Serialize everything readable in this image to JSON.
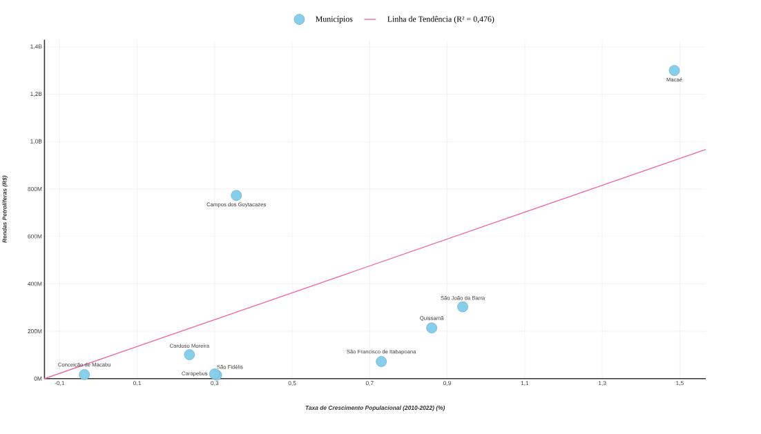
{
  "chart_data": {
    "type": "scatter",
    "xlabel": "Taxa de Crescimento Populacional (2010-2022) (%)",
    "ylabel": "Rendas Petrolíferas (R$)",
    "series": [
      {
        "name": "Municípios",
        "color": "#87ceeb",
        "marker": "circle",
        "x": [
          -0.036,
          0.235,
          0.305,
          0.3,
          0.356,
          0.73,
          0.86,
          0.94,
          1.486
        ],
        "values": [
          17000000,
          101000000,
          15000000,
          20000000,
          773000000,
          72000000,
          214000000,
          303000000,
          1300000000
        ]
      },
      {
        "name": "Linha de Tendência (R² = 0,476)",
        "type": "line",
        "color": "#f06aa8",
        "marker": "none",
        "line_style": "solid",
        "x": [
          -0.139,
          1.567
        ],
        "values": [
          0,
          967000000
        ]
      }
    ],
    "annotations": [
      {
        "text": "Conceição de Macabu",
        "x": -0.036,
        "y": 17000000
      },
      {
        "text": "Cardoso Moreira",
        "x": 0.235,
        "y": 101000000
      },
      {
        "text": "São Fidélis",
        "x": 0.305,
        "y": 15000000
      },
      {
        "text": "Carapebus",
        "x": 0.3,
        "y": 20000000
      },
      {
        "text": "Campos dos Goytacazes",
        "x": 0.356,
        "y": 773000000
      },
      {
        "text": "São Francisco de Itabapoana",
        "x": 0.73,
        "y": 72000000
      },
      {
        "text": "Quissamã",
        "x": 0.86,
        "y": 214000000
      },
      {
        "text": "São João da Barra",
        "x": 0.94,
        "y": 303000000
      },
      {
        "text": "Macaé",
        "x": 1.486,
        "y": 1300000000
      }
    ],
    "xlim": [
      -0.139,
      1.567
    ],
    "ylim": [
      0,
      1430000000
    ],
    "xticks": [
      {
        "value": -0.1,
        "label": "-0,1"
      },
      {
        "value": 0.1,
        "label": "0,1"
      },
      {
        "value": 0.3,
        "label": "0,3"
      },
      {
        "value": 0.5,
        "label": "0,5"
      },
      {
        "value": 0.7,
        "label": "0,7"
      },
      {
        "value": 0.9,
        "label": "0,9"
      },
      {
        "value": 1.1,
        "label": "1,1"
      },
      {
        "value": 1.3,
        "label": "1,3"
      },
      {
        "value": 1.5,
        "label": "1,5"
      }
    ],
    "yticks": [
      {
        "value": 0,
        "label": "0M"
      },
      {
        "value": 200000000,
        "label": "200M"
      },
      {
        "value": 400000000,
        "label": "400M"
      },
      {
        "value": 600000000,
        "label": "600M"
      },
      {
        "value": 800000000,
        "label": "800M"
      },
      {
        "value": 1000000000,
        "label": "1,0B"
      },
      {
        "value": 1200000000,
        "label": "1,2B"
      },
      {
        "value": 1400000000,
        "label": "1,4B"
      }
    ],
    "grid": true,
    "legend": "top"
  }
}
